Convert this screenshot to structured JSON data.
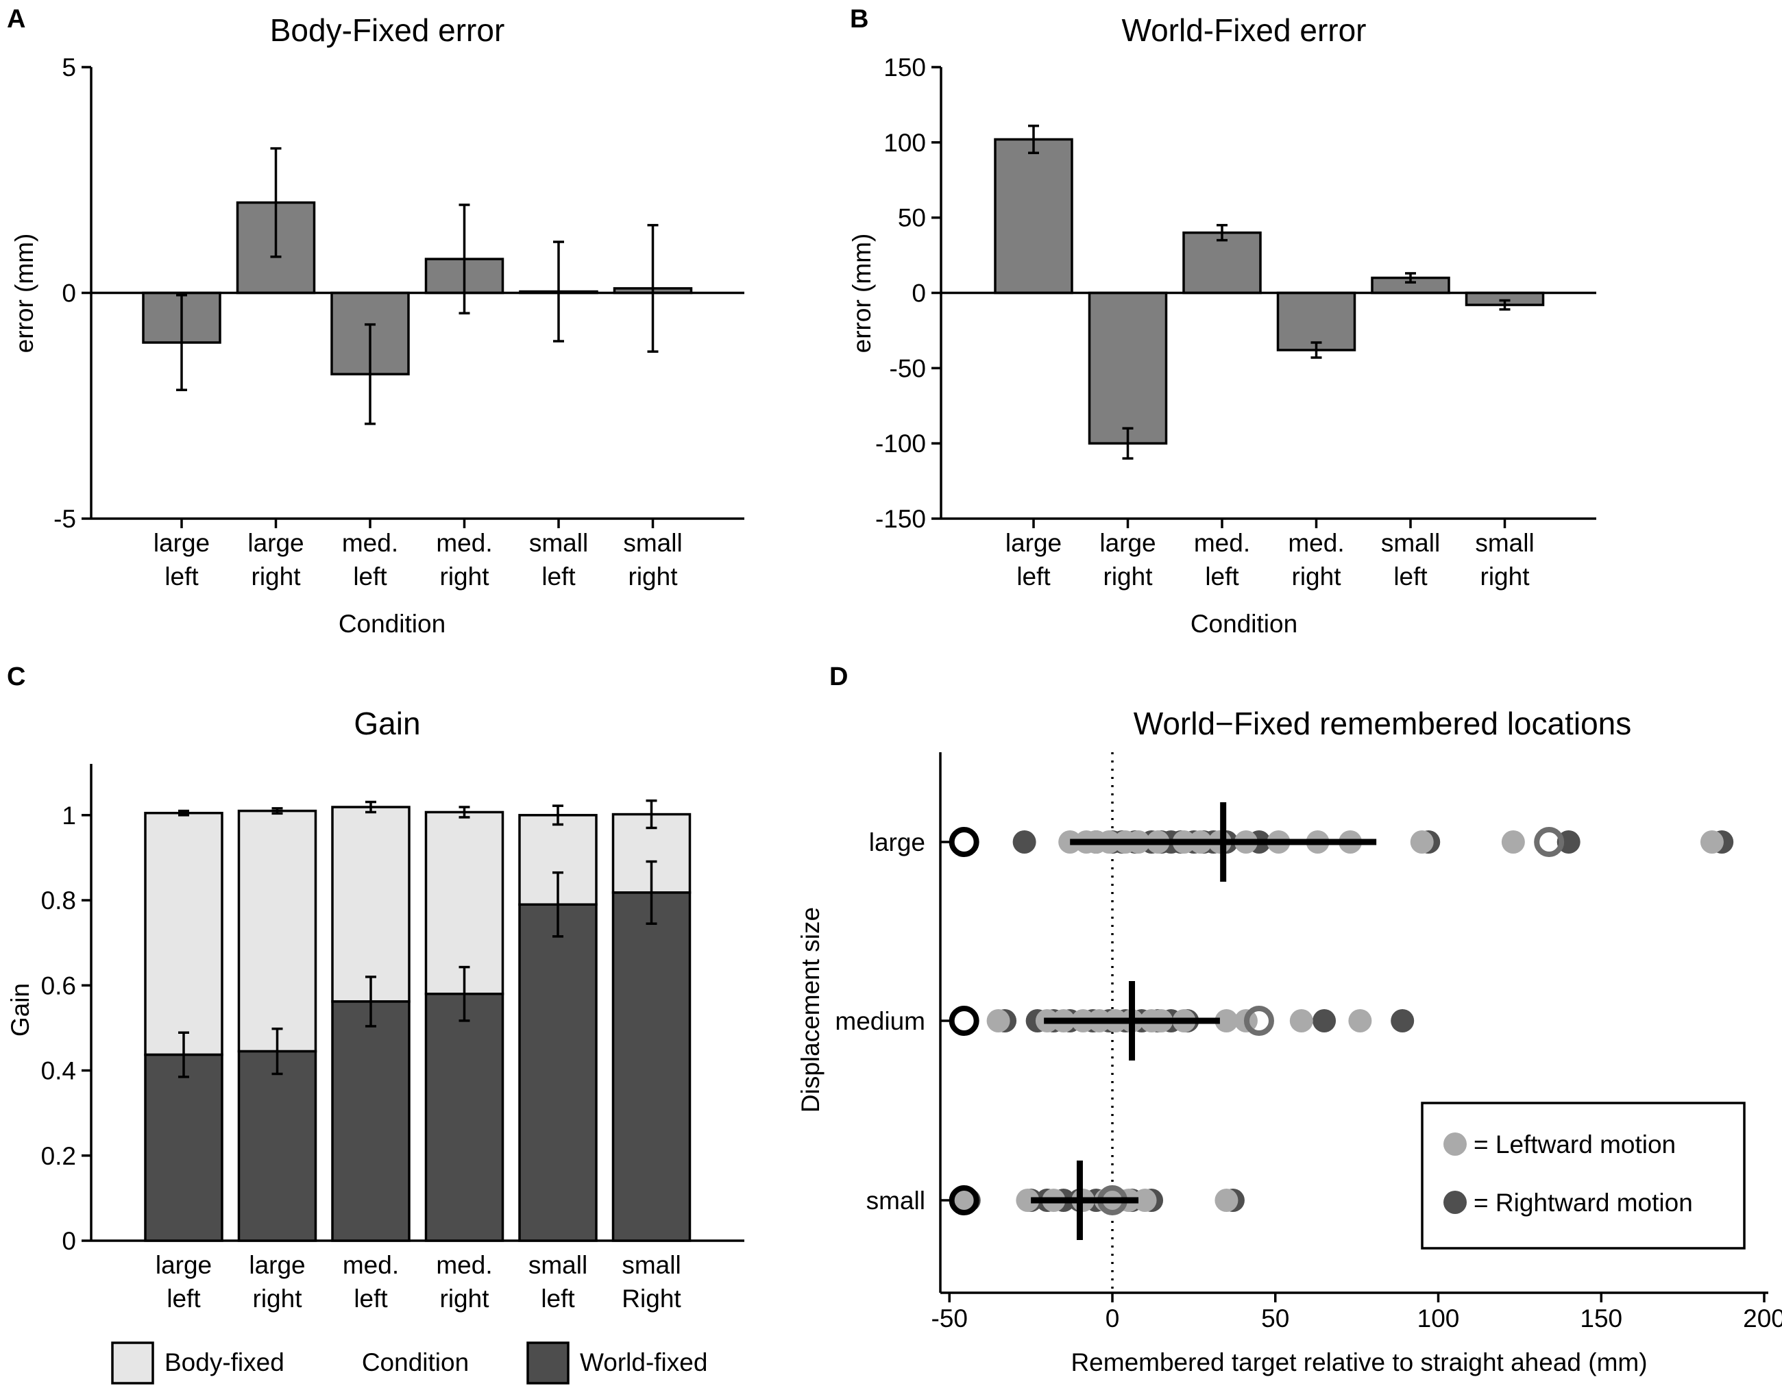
{
  "colors": {
    "bar": "#7f7f7f",
    "world_fixed": "#4d4d4d",
    "body_fixed": "#e6e6e6",
    "leftward_dot": "#aaaaaa",
    "rightward_dot": "#4f4f4f",
    "axis": "#000000"
  },
  "panel_labels": {
    "a": "A",
    "b": "B",
    "c": "C",
    "d": "D"
  },
  "chart_data": [
    {
      "panel": "A",
      "type": "bar",
      "title": "Body-Fixed error",
      "xlabel": "Condition",
      "ylabel": "error (mm)",
      "ylim": [
        -5,
        5
      ],
      "yticks": [
        "5",
        "0",
        "-5"
      ],
      "categories": [
        [
          "large",
          "left"
        ],
        [
          "large",
          "right"
        ],
        [
          "med.",
          "left"
        ],
        [
          "med.",
          "right"
        ],
        [
          "small",
          "left"
        ],
        [
          "small",
          "right"
        ]
      ],
      "values": [
        -1.1,
        2.0,
        -1.8,
        0.75,
        0.03,
        0.1
      ],
      "error": [
        1.05,
        1.2,
        1.1,
        1.2,
        1.1,
        1.4
      ]
    },
    {
      "panel": "B",
      "type": "bar",
      "title": "World-Fixed error",
      "xlabel": "Condition",
      "ylabel": "error (mm)",
      "ylim": [
        -150,
        150
      ],
      "yticks": [
        "150",
        "100",
        "50",
        "0",
        "-50",
        "-100",
        "-150"
      ],
      "categories": [
        [
          "large",
          "left"
        ],
        [
          "large",
          "right"
        ],
        [
          "med.",
          "left"
        ],
        [
          "med.",
          "right"
        ],
        [
          "small",
          "left"
        ],
        [
          "small",
          "right"
        ]
      ],
      "values": [
        102,
        -100,
        40,
        -38,
        10,
        -8
      ],
      "error": [
        9,
        10,
        5,
        5,
        3,
        3
      ]
    },
    {
      "panel": "C",
      "type": "bar",
      "stacked": true,
      "title": "Gain",
      "xlabel": "Condition",
      "ylabel": "Gain",
      "ylim": [
        0,
        1
      ],
      "yticks": [
        "1",
        "0.8",
        "0.6",
        "0.4",
        "0.2",
        "0"
      ],
      "categories": [
        [
          "large",
          "left"
        ],
        [
          "large",
          "right"
        ],
        [
          "med.",
          "left"
        ],
        [
          "med.",
          "right"
        ],
        [
          "small",
          "left"
        ],
        [
          "small",
          "Right"
        ]
      ],
      "series": [
        {
          "name": "World-fixed",
          "values": [
            0.437,
            0.445,
            0.562,
            0.58,
            0.79,
            0.818
          ],
          "error": [
            0.052,
            0.053,
            0.058,
            0.063,
            0.075,
            0.073
          ]
        },
        {
          "name": "Body-fixed",
          "values": [
            0.568,
            0.565,
            0.457,
            0.427,
            0.21,
            0.184
          ],
          "error": [
            0.005,
            0.006,
            0.012,
            0.012,
            0.022,
            0.032
          ]
        }
      ],
      "totals": [
        1.005,
        1.01,
        1.019,
        1.007,
        1.0,
        1.002
      ],
      "legend": {
        "body": "Body-fixed",
        "center": "Condition",
        "world": "World-fixed",
        "position": "bottom"
      }
    },
    {
      "panel": "D",
      "type": "scatter",
      "title": "World−Fixed remembered locations",
      "xlabel": "Remembered target relative to straight ahead (mm)",
      "ylabel": "Displacement size",
      "xlim": [
        -52,
        200
      ],
      "xticks": [
        "-50",
        "0",
        "50",
        "100",
        "150",
        "200"
      ],
      "categories": [
        "large",
        "medium",
        "small"
      ],
      "series": [
        {
          "name": "= Leftward motion",
          "values": {
            "large": [
              -13,
              -8,
              -5,
              -1,
              4,
              8,
              14,
              22,
              27,
              33,
              41,
              51,
              63,
              73,
              95,
              123,
              184
            ],
            "medium": [
              -35,
              -20,
              -15,
              -9,
              -4,
              1,
              6,
              12,
              15,
              22,
              35,
              41,
              58,
              76
            ],
            "small": [
              -45,
              -26,
              -18,
              -9,
              -2,
              0,
              2,
              5,
              10,
              35
            ]
          }
        },
        {
          "name": "= Rightward motion",
          "values": {
            "large": [
              -27,
              -5,
              0,
              3,
              7,
              12,
              15,
              18,
              21,
              25,
              28,
              31,
              35,
              45,
              97,
              140,
              187
            ],
            "medium": [
              -33,
              -23,
              -18,
              -13,
              -6,
              -1,
              4,
              9,
              14,
              18,
              23,
              65,
              89
            ],
            "small": [
              -44,
              -25,
              -20,
              -15,
              -10,
              -5,
              0,
              6,
              12,
              37
            ]
          }
        }
      ],
      "open_circles": {
        "black": [
          -45.5,
          -45.5,
          -45.5
        ],
        "gray_large": 134,
        "gray_medium": 45,
        "gray_small": 0
      },
      "means": {
        "large": 34,
        "medium": 6,
        "small": -10
      },
      "spread": {
        "large": [
          -13,
          81
        ],
        "medium": [
          -21,
          33
        ],
        "small": [
          -25,
          8
        ]
      },
      "legend": {
        "position": "bottom-right"
      }
    }
  ]
}
